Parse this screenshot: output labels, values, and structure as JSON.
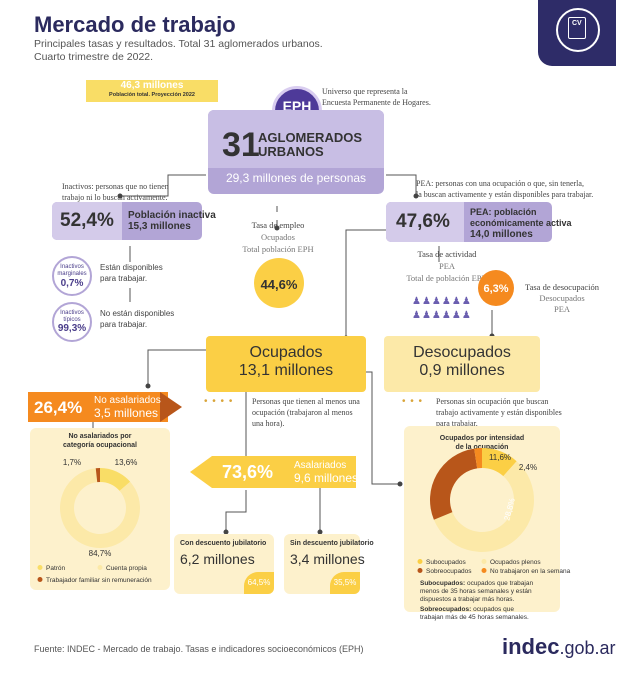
{
  "header": {
    "title": "Mercado de trabajo",
    "subtitle_1": "Principales tasas y resultados. Total 31 aglomerados urbanos.",
    "subtitle_2": "Cuarto trimestre de 2022."
  },
  "population": {
    "value": "46,3 millones",
    "label": "Población total. Proyección 2022"
  },
  "eph": {
    "label": "EPH",
    "description_1": "Universo que representa la",
    "description_2": "Encuesta Permanente de Hogares."
  },
  "aglomerados": {
    "number": "31",
    "label_1": "AGLOMERADOS",
    "label_2": "URBANOS",
    "people": "29,3 millones de personas"
  },
  "inactivos": {
    "def_1": "Inactivos: personas que no tienen",
    "def_2": "trabajo ni lo buscan activamente.",
    "pct": "52,4%",
    "label_1": "Población inactiva",
    "label_2": "15,3 millones"
  },
  "marginales": {
    "label_1": "Inactivos",
    "label_2": "marginales",
    "pct": "0,7%",
    "desc_1": "Están disponibles",
    "desc_2": "para trabajar."
  },
  "tipicos": {
    "label_1": "Inactivos",
    "label_2": "típicos",
    "pct": "99,3%",
    "desc_1": "No están disponibles",
    "desc_2": "para trabajar."
  },
  "pea": {
    "def_1": "PEA: personas con una ocupación o que, sin tenerla,",
    "def_2": "la buscan activamente y están disponibles para trabajar.",
    "pct": "47,6%",
    "label_1": "PEA: población",
    "label_2": "económicamente activa",
    "label_3": "14,0 millones"
  },
  "tasa_empleo": {
    "title": "Tasa de empleo",
    "num": "Ocupados",
    "den": "Total población EPH",
    "value": "44,6%"
  },
  "tasa_actividad": {
    "title": "Tasa de actividad",
    "num": "PEA",
    "den": "Total de población EPH"
  },
  "tasa_desocupacion": {
    "title": "Tasa de desocupación",
    "num": "Desocupados",
    "den": "PEA",
    "value": "6,3%"
  },
  "ocupados": {
    "label": "Ocupados",
    "value": "13,1 millones",
    "def_1": "Personas que tienen al menos una",
    "def_2": "ocupación (trabajaron al menos",
    "def_3": "una hora)."
  },
  "desocupados": {
    "label": "Desocupados",
    "value": "0,9 millones",
    "def_1": "Personas sin ocupación que buscan",
    "def_2": "trabajo activamente y están disponibles",
    "def_3": "para trabajar."
  },
  "no_asalariados": {
    "pct": "26,4%",
    "label": "No asalariados",
    "value": "3,5 millones",
    "chart_title_1": "No asalariados por",
    "chart_title_2": "categoría ocupacional"
  },
  "asalariados": {
    "pct": "73,6%",
    "label": "Asalariados",
    "value": "9,6 millones"
  },
  "con_descuento": {
    "label": "Con descuento jubilatorio",
    "value": "6,2 millones",
    "pct": "64,5%"
  },
  "sin_descuento": {
    "label": "Sin descuento jubilatorio",
    "value": "3,4 millones",
    "pct": "35,5%"
  },
  "intensidad": {
    "title_1": "Ocupados por intensidad",
    "title_2": "de la ocupación",
    "sub_title": "Subocupados:",
    "sub_def_1": "ocupados que trabajan",
    "sub_def_2": "menos de 35 horas semanales y están",
    "sub_def_3": "dispuestos a trabajar más horas.",
    "sobre_title": "Sobreocupados:",
    "sobre_def_1": "ocupados que",
    "sobre_def_2": "trabajan más de 45 horas semanales."
  },
  "footer": {
    "source": "Fuente: INDEC - Mercado de trabajo. Tasas e indicadores socioeconómicos (EPH)",
    "logo_main": "indec",
    "logo_domain": ".gob.ar"
  },
  "colors": {
    "purple": "#b2a5d6",
    "dark_purple": "#4e3a99",
    "yellow": "#fbcf45",
    "orange": "#f58a1f",
    "brown": "#b8561a",
    "navy": "#2b2a5e"
  },
  "chart_data": [
    {
      "type": "pie",
      "title": "No asalariados por categoría ocupacional",
      "categories": [
        "Patrón",
        "Cuenta propia",
        "Trabajador familiar sin remuneración"
      ],
      "values": [
        13.6,
        84.7,
        1.7
      ],
      "labels": [
        "13,6%",
        "84,7%",
        "1,7%"
      ],
      "colors": [
        "#f9dd66",
        "#fce9a8",
        "#b8561a"
      ],
      "legend": "bottom"
    },
    {
      "type": "pie",
      "title": "Ocupados por intensidad de la ocupación",
      "categories": [
        "Subocupados",
        "Ocupados plenos",
        "Sobreocupados",
        "No trabajaron en la semana"
      ],
      "values": [
        11.6,
        57.2,
        28.8,
        2.4
      ],
      "labels": [
        "11,6%",
        "57,2%",
        "28,8%",
        "2,4%"
      ],
      "colors": [
        "#fbcf45",
        "#fce9a8",
        "#b8561a",
        "#f58a1f"
      ],
      "legend": "bottom"
    }
  ]
}
